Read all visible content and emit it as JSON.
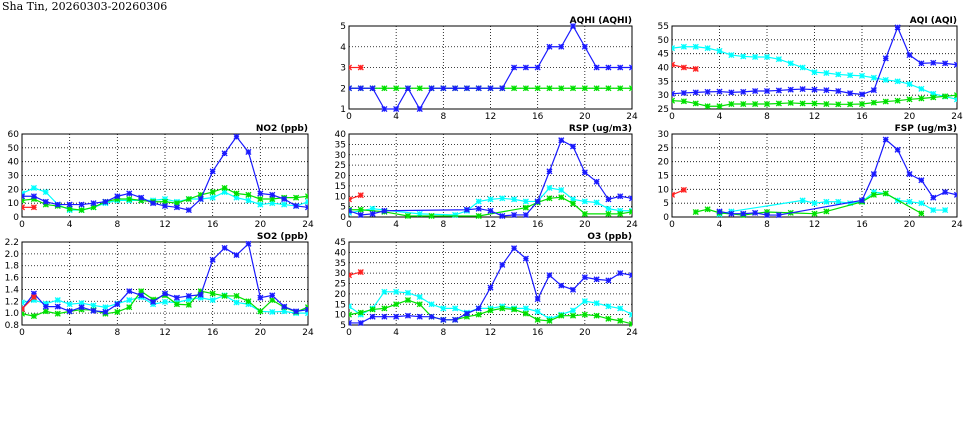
{
  "title": "Sha Tin, 20260303-20260306",
  "chart_data": [
    {
      "id": "aqhi",
      "type": "line",
      "title": "AQHI (AQHI)",
      "xlim": [
        0,
        24
      ],
      "xticks": [
        "0",
        "4",
        "8",
        "12",
        "16",
        "20",
        "24"
      ],
      "ylim": [
        1,
        5
      ],
      "yticks": [
        "1",
        "2",
        "3",
        "4",
        "5"
      ],
      "grid": true,
      "series": [
        {
          "color": "#00e000",
          "values": [
            2,
            2,
            2,
            2,
            2,
            2,
            2,
            2,
            2,
            2,
            2,
            2,
            2,
            2,
            2,
            2,
            2,
            2,
            2,
            2,
            2,
            2,
            2,
            2,
            2
          ]
        },
        {
          "color": "#1a1aff",
          "values": [
            2,
            2,
            2,
            1,
            1,
            2,
            1,
            2,
            2,
            2,
            2,
            2,
            2,
            2,
            3,
            3,
            3,
            4,
            4,
            5,
            4,
            3,
            3,
            3,
            3
          ]
        },
        {
          "color": "#ff2020",
          "values": [
            3,
            3,
            null,
            null,
            null,
            null,
            null,
            null,
            null,
            null,
            null,
            null,
            null,
            null,
            null,
            null,
            null,
            null,
            null,
            null,
            null,
            null,
            null,
            null,
            null
          ]
        }
      ]
    },
    {
      "id": "aqi",
      "type": "line",
      "title": "AQI (AQI)",
      "xlim": [
        0,
        24
      ],
      "xticks": [
        "0",
        "4",
        "8",
        "12",
        "16",
        "20",
        "24"
      ],
      "ylim": [
        25,
        55
      ],
      "yticks": [
        "25",
        "30",
        "35",
        "40",
        "45",
        "50",
        "55"
      ],
      "grid": true,
      "series": [
        {
          "color": "#00ffff",
          "values": [
            47,
            47.5,
            47.5,
            47,
            46,
            44.5,
            44,
            43.8,
            43.8,
            43,
            41.5,
            40,
            38.3,
            38,
            37.5,
            37.2,
            37,
            36.3,
            35.5,
            35,
            34,
            32.3,
            30.5,
            29.5,
            28.5
          ]
        },
        {
          "color": "#00e000",
          "values": [
            28,
            27.8,
            27,
            26,
            26,
            26.8,
            26.8,
            26.8,
            26.8,
            27,
            27.2,
            27,
            27,
            26.8,
            26.7,
            26.7,
            26.8,
            27.3,
            27.7,
            28,
            28.5,
            28.8,
            29.2,
            29.6,
            30
          ]
        },
        {
          "color": "#1a1aff",
          "values": [
            30.5,
            30.8,
            31,
            31.2,
            31.3,
            31,
            31.2,
            31.5,
            31.5,
            31.7,
            32,
            32.2,
            32,
            31.8,
            31.5,
            30.7,
            30.3,
            31.8,
            43.3,
            54.5,
            44.5,
            41.5,
            41.7,
            41.5,
            41
          ]
        },
        {
          "color": "#ff2020",
          "values": [
            41,
            40,
            39.5,
            null,
            null,
            null,
            null,
            null,
            null,
            null,
            null,
            null,
            null,
            null,
            null,
            null,
            null,
            null,
            null,
            null,
            null,
            null,
            null,
            null,
            null
          ]
        }
      ]
    },
    {
      "id": "no2",
      "type": "line",
      "title": "NO2 (ppb)",
      "xlim": [
        0,
        24
      ],
      "xticks": [
        "0",
        "4",
        "8",
        "12",
        "16",
        "20",
        "24"
      ],
      "ylim": [
        0,
        60
      ],
      "yticks": [
        "0",
        "10",
        "20",
        "30",
        "40",
        "50",
        "60"
      ],
      "grid": true,
      "series": [
        {
          "color": "#00ffff",
          "values": [
            17,
            21,
            18,
            9,
            5,
            5,
            7,
            10,
            12,
            12,
            12,
            12,
            13,
            11,
            13,
            13,
            14,
            18,
            14,
            12,
            9,
            10,
            9,
            8,
            11
          ]
        },
        {
          "color": "#00e000",
          "values": [
            12,
            13,
            9,
            8,
            6,
            5,
            7,
            11,
            13,
            13,
            12,
            11,
            11,
            10,
            13,
            16,
            18,
            21,
            17,
            16,
            13,
            13,
            14,
            14,
            15
          ]
        },
        {
          "color": "#1a1aff",
          "values": [
            15,
            15,
            11,
            9,
            9,
            9,
            10,
            11,
            15,
            17,
            14,
            10,
            8,
            7,
            5,
            13,
            33,
            46,
            58,
            47,
            17,
            16,
            13,
            8,
            7
          ]
        },
        {
          "color": "#ff2020",
          "values": [
            7,
            7,
            null,
            null,
            null,
            null,
            null,
            null,
            null,
            null,
            null,
            null,
            null,
            null,
            null,
            null,
            null,
            null,
            null,
            null,
            null,
            null,
            null,
            null,
            null
          ]
        }
      ]
    },
    {
      "id": "rsp",
      "type": "line",
      "title": "RSP (ug/m3)",
      "xlim": [
        0,
        24
      ],
      "xticks": [
        "0",
        "4",
        "8",
        "12",
        "16",
        "20",
        "24"
      ],
      "ylim": [
        0,
        40
      ],
      "yticks": [
        "0",
        "5",
        "10",
        "15",
        "20",
        "25",
        "30",
        "35",
        "40"
      ],
      "grid": true,
      "series": [
        {
          "color": "#00ffff",
          "values": [
            2,
            null,
            4,
            null,
            null,
            null,
            1.5,
            null,
            null,
            1,
            3,
            7.5,
            8.5,
            9,
            8.5,
            7.5,
            7.5,
            14,
            13,
            8.5,
            7.5,
            7,
            4,
            3,
            3
          ]
        },
        {
          "color": "#00e000",
          "values": [
            3.5,
            3.5,
            null,
            2.5,
            null,
            0.5,
            null,
            0.5,
            null,
            null,
            null,
            0.5,
            null,
            null,
            null,
            4.5,
            7,
            9,
            9.5,
            6.5,
            1.5,
            null,
            1.5,
            1.5,
            2.5
          ]
        },
        {
          "color": "#1a1aff",
          "values": [
            3,
            1,
            1.5,
            3,
            null,
            null,
            null,
            null,
            null,
            null,
            3.5,
            4,
            3,
            0.5,
            1,
            1,
            7.5,
            22,
            37,
            34,
            21.5,
            17,
            8.5,
            10,
            9
          ]
        },
        {
          "color": "#ff2020",
          "values": [
            8.5,
            10.5,
            null,
            null,
            null,
            null,
            null,
            null,
            null,
            null,
            null,
            null,
            null,
            null,
            null,
            null,
            null,
            null,
            null,
            null,
            null,
            null,
            null,
            null,
            null
          ]
        }
      ]
    },
    {
      "id": "fsp",
      "type": "line",
      "title": "FSP (ug/m3)",
      "xlim": [
        0,
        24
      ],
      "xticks": [
        "0",
        "4",
        "8",
        "12",
        "16",
        "20",
        "24"
      ],
      "ylim": [
        0,
        30
      ],
      "yticks": [
        "0",
        "5",
        "10",
        "15",
        "20",
        "25",
        "30"
      ],
      "grid": true,
      "series": [
        {
          "color": "#00ffff",
          "values": [
            null,
            null,
            null,
            null,
            1,
            2,
            null,
            null,
            null,
            null,
            null,
            6,
            5,
            5.5,
            5.5,
            5,
            5.5,
            9,
            8.5,
            6,
            5.5,
            5,
            2.5,
            2.5,
            null
          ]
        },
        {
          "color": "#00e000",
          "values": [
            null,
            null,
            1.8,
            2.8,
            1.5,
            null,
            0.7,
            null,
            1.8,
            null,
            1.5,
            null,
            1.2,
            2,
            null,
            null,
            5.5,
            8,
            8.5,
            null,
            null,
            1.3,
            null,
            null,
            null
          ]
        },
        {
          "color": "#1a1aff",
          "values": [
            null,
            null,
            null,
            null,
            2,
            1.2,
            1.2,
            1.5,
            0.7,
            0.7,
            null,
            null,
            null,
            null,
            null,
            null,
            6,
            15.5,
            28,
            24.3,
            15.5,
            13.3,
            7,
            9,
            8
          ]
        },
        {
          "color": "#ff2020",
          "values": [
            8,
            9.8,
            null,
            null,
            null,
            null,
            null,
            null,
            null,
            null,
            null,
            null,
            null,
            null,
            null,
            null,
            null,
            null,
            null,
            null,
            null,
            null,
            null,
            null,
            null
          ]
        }
      ]
    },
    {
      "id": "so2",
      "type": "line",
      "title": "SO2 (ppb)",
      "xlim": [
        0,
        24
      ],
      "xticks": [
        "0",
        "4",
        "8",
        "12",
        "16",
        "20",
        "24"
      ],
      "ylim": [
        0.8,
        2.2
      ],
      "yticks": [
        "0.8",
        "1.0",
        "1.2",
        "1.4",
        "1.6",
        "1.8",
        "2.0",
        "2.2"
      ],
      "grid": true,
      "series": [
        {
          "color": "#00ffff",
          "values": [
            1.18,
            1.22,
            1.16,
            1.22,
            1.15,
            1.17,
            1.13,
            1.1,
            1.16,
            1.22,
            1.27,
            1.15,
            1.19,
            1.18,
            1.23,
            1.26,
            1.22,
            1.3,
            1.18,
            1.15,
            1.03,
            1.02,
            1.03,
            1.0,
            1.0
          ]
        },
        {
          "color": "#00e000",
          "values": [
            0.99,
            0.95,
            1.03,
            0.99,
            1.03,
            1.06,
            1.05,
            0.99,
            1.02,
            1.1,
            1.37,
            1.23,
            1.3,
            1.15,
            1.14,
            1.37,
            1.33,
            1.29,
            1.29,
            1.2,
            1.03,
            1.22,
            1.1,
            1.02,
            1.1
          ]
        },
        {
          "color": "#1a1aff",
          "values": [
            1.07,
            1.33,
            1.11,
            1.11,
            1.03,
            1.1,
            1.04,
            1.02,
            1.15,
            1.37,
            1.3,
            1.19,
            1.33,
            1.26,
            1.29,
            1.31,
            1.9,
            2.1,
            1.98,
            2.17,
            1.26,
            1.3,
            1.11,
            1.03,
            1.06
          ]
        },
        {
          "color": "#ff2020",
          "values": [
            1.07,
            1.27,
            null,
            null,
            null,
            null,
            null,
            null,
            null,
            null,
            null,
            null,
            null,
            null,
            null,
            null,
            null,
            null,
            null,
            null,
            null,
            null,
            null,
            null,
            null
          ]
        }
      ]
    },
    {
      "id": "o3",
      "type": "line",
      "title": "O3 (ppb)",
      "xlim": [
        0,
        24
      ],
      "xticks": [
        "0",
        "4",
        "8",
        "12",
        "16",
        "20",
        "24"
      ],
      "ylim": [
        5,
        45
      ],
      "yticks": [
        "5",
        "10",
        "15",
        "20",
        "25",
        "30",
        "35",
        "40",
        "45"
      ],
      "grid": true,
      "series": [
        {
          "color": "#00ffff",
          "values": [
            14,
            10,
            13,
            21,
            21,
            20.5,
            18.5,
            15,
            13,
            13,
            11,
            13,
            13,
            14,
            13,
            13,
            11.5,
            8,
            10,
            12,
            16.5,
            15.5,
            14,
            13,
            10
          ]
        },
        {
          "color": "#00e000",
          "values": [
            10,
            11,
            12.5,
            13,
            15,
            17,
            15,
            9,
            7.5,
            7.5,
            9,
            10,
            12,
            13,
            12.5,
            10.5,
            7.5,
            7,
            9.5,
            9.5,
            10,
            9.5,
            8,
            7,
            5.5
          ]
        },
        {
          "color": "#1a1aff",
          "values": [
            6,
            6,
            9,
            9,
            9,
            9.5,
            9,
            9,
            7.5,
            7.5,
            10.5,
            13,
            23,
            34,
            42,
            37,
            17.5,
            29,
            24,
            22,
            28,
            27,
            26.5,
            30,
            29
          ]
        },
        {
          "color": "#ff2020",
          "values": [
            29,
            30.5,
            null,
            null,
            null,
            null,
            null,
            null,
            null,
            null,
            null,
            null,
            null,
            null,
            null,
            null,
            null,
            null,
            null,
            null,
            null,
            null,
            null,
            null,
            null
          ]
        }
      ]
    }
  ]
}
